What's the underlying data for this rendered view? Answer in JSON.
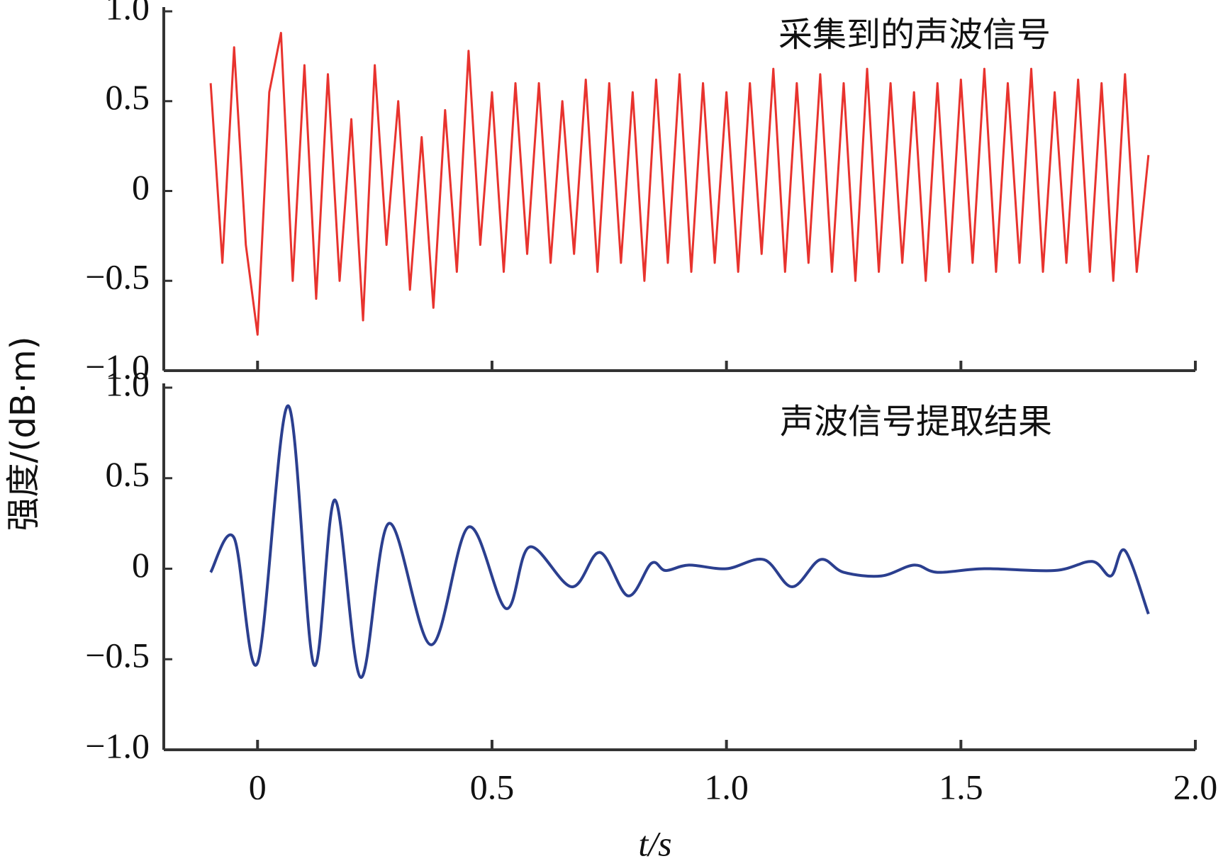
{
  "chart_data": [
    {
      "type": "line",
      "title": "采集到的声波信号",
      "ylabel": "强度/(dB·m)",
      "x": [
        -0.1,
        -0.075,
        -0.05,
        -0.025,
        0,
        0.025,
        0.05,
        0.075,
        0.1,
        0.125,
        0.15,
        0.175,
        0.2,
        0.225,
        0.25,
        0.275,
        0.3,
        0.325,
        0.35,
        0.375,
        0.4,
        0.425,
        0.45,
        0.475,
        0.5,
        0.525,
        0.55,
        0.575,
        0.6,
        0.625,
        0.65,
        0.675,
        0.7,
        0.725,
        0.75,
        0.775,
        0.8,
        0.825,
        0.85,
        0.875,
        0.9,
        0.925,
        0.95,
        0.975,
        1,
        1.025,
        1.05,
        1.075,
        1.1,
        1.125,
        1.15,
        1.175,
        1.2,
        1.225,
        1.25,
        1.275,
        1.3,
        1.325,
        1.35,
        1.375,
        1.4,
        1.425,
        1.45,
        1.475,
        1.5,
        1.525,
        1.55,
        1.575,
        1.6,
        1.625,
        1.65,
        1.675,
        1.7,
        1.725,
        1.75,
        1.775,
        1.8,
        1.825,
        1.85,
        1.875,
        1.9
      ],
      "series": [
        {
          "color": "#e8332e",
          "values": [
            0.6,
            -0.4,
            0.8,
            -0.3,
            -0.8,
            0.55,
            0.88,
            -0.5,
            0.7,
            -0.6,
            0.65,
            -0.5,
            0.4,
            -0.72,
            0.7,
            -0.3,
            0.5,
            -0.55,
            0.3,
            -0.65,
            0.45,
            -0.45,
            0.78,
            -0.3,
            0.55,
            -0.45,
            0.6,
            -0.35,
            0.6,
            -0.4,
            0.5,
            -0.35,
            0.62,
            -0.45,
            0.6,
            -0.4,
            0.55,
            -0.5,
            0.62,
            -0.4,
            0.65,
            -0.45,
            0.6,
            -0.4,
            0.55,
            -0.45,
            0.6,
            -0.35,
            0.68,
            -0.45,
            0.6,
            -0.4,
            0.65,
            -0.45,
            0.6,
            -0.5,
            0.68,
            -0.45,
            0.6,
            -0.4,
            0.55,
            -0.5,
            0.6,
            -0.45,
            0.62,
            -0.4,
            0.68,
            -0.45,
            0.6,
            -0.4,
            0.68,
            -0.45,
            0.55,
            -0.4,
            0.62,
            -0.45,
            0.6,
            -0.5,
            0.65,
            -0.45,
            0.2
          ]
        }
      ],
      "xlim": [
        -0.2,
        2.0
      ],
      "xticks": [
        0,
        0.5,
        1,
        1.5,
        2
      ],
      "ylim": [
        -1,
        1
      ],
      "yticks": [
        {
          "value": -1,
          "label": "−1.0"
        },
        {
          "value": -0.5,
          "label": "−0.5"
        },
        0,
        0.5,
        {
          "value": 1,
          "label": "1.0"
        }
      ]
    },
    {
      "type": "line",
      "title": "声波信号提取结果",
      "xlabel": "t/s",
      "smooth": true,
      "x": [
        -0.1,
        -0.05,
        0,
        0.065,
        0.12,
        0.165,
        0.22,
        0.28,
        0.37,
        0.45,
        0.53,
        0.58,
        0.67,
        0.73,
        0.79,
        0.84,
        0.87,
        0.92,
        1,
        1.08,
        1.14,
        1.2,
        1.25,
        1.33,
        1.4,
        1.45,
        1.55,
        1.7,
        1.78,
        1.82,
        1.85,
        1.9
      ],
      "series": [
        {
          "color": "#2b3f8f",
          "values": [
            -0.02,
            0.17,
            -0.52,
            0.9,
            -0.53,
            0.38,
            -0.6,
            0.25,
            -0.42,
            0.23,
            -0.22,
            0.12,
            -0.1,
            0.09,
            -0.15,
            0.03,
            -0.01,
            0.02,
            0,
            0.05,
            -0.1,
            0.05,
            -0.02,
            -0.04,
            0.02,
            -0.02,
            0,
            -0.01,
            0.04,
            -0.04,
            0.1,
            -0.25
          ]
        }
      ],
      "xlim": [
        -0.2,
        2.0
      ],
      "xticks": [
        0,
        0.5,
        {
          "value": 1,
          "label": "1.0"
        },
        1.5,
        {
          "value": 2,
          "label": "2.0"
        }
      ],
      "ylim": [
        -1,
        1
      ],
      "yticks": [
        {
          "value": -1,
          "label": "−1.0"
        },
        {
          "value": -0.5,
          "label": "−0.5"
        },
        0,
        0.5,
        {
          "value": 1,
          "label": "1.0"
        }
      ]
    }
  ]
}
